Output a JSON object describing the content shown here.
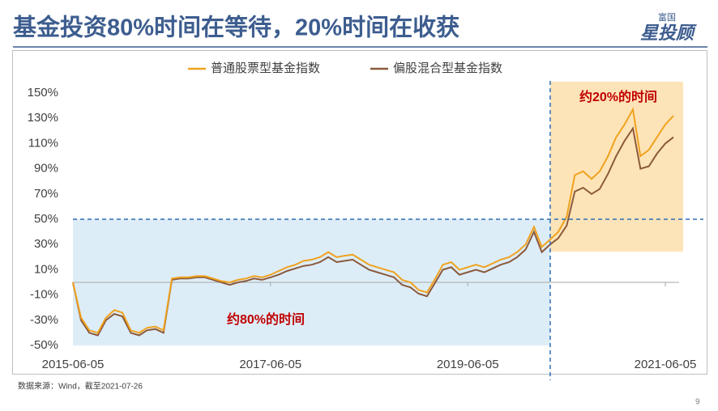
{
  "slide": {
    "title": "基金投资80%时间在等待，20%时间在收获",
    "logo_top": "富国",
    "logo_main": "星投顾",
    "source": "数据来源：Wind，截至2021-07-26",
    "page": "9"
  },
  "chart_data": {
    "type": "line",
    "x": [
      "2015-06-05",
      "2015-07-05",
      "2015-08-05",
      "2015-09-05",
      "2015-10-05",
      "2015-11-05",
      "2015-12-05",
      "2016-01-05",
      "2016-02-05",
      "2016-03-05",
      "2016-04-05",
      "2016-05-05",
      "2016-06-05",
      "2016-07-05",
      "2016-08-05",
      "2016-09-05",
      "2016-10-05",
      "2016-11-05",
      "2016-12-05",
      "2017-01-05",
      "2017-02-05",
      "2017-03-05",
      "2017-04-05",
      "2017-05-05",
      "2017-06-05",
      "2017-07-05",
      "2017-08-05",
      "2017-09-05",
      "2017-10-05",
      "2017-11-05",
      "2017-12-05",
      "2018-01-05",
      "2018-02-05",
      "2018-03-05",
      "2018-04-05",
      "2018-05-05",
      "2018-06-05",
      "2018-07-05",
      "2018-08-05",
      "2018-09-05",
      "2018-10-05",
      "2018-11-05",
      "2018-12-05",
      "2019-01-05",
      "2019-02-05",
      "2019-03-05",
      "2019-04-05",
      "2019-05-05",
      "2019-06-05",
      "2019-07-05",
      "2019-08-05",
      "2019-09-05",
      "2019-10-05",
      "2019-11-05",
      "2019-12-05",
      "2020-01-05",
      "2020-02-05",
      "2020-03-05",
      "2020-04-05",
      "2020-05-05",
      "2020-06-05",
      "2020-07-05",
      "2020-08-05",
      "2020-09-05",
      "2020-10-05",
      "2020-11-05",
      "2020-12-05",
      "2021-01-05",
      "2021-02-05",
      "2021-03-05",
      "2021-04-05",
      "2021-05-05",
      "2021-06-05",
      "2021-07-05"
    ],
    "series": [
      {
        "name": "普通股票型基金指数",
        "color": "#f0a21e",
        "values": [
          0,
          -28,
          -38,
          -40,
          -28,
          -22,
          -24,
          -38,
          -40,
          -36,
          -35,
          -38,
          3,
          4,
          4,
          5,
          5,
          3,
          1,
          0,
          2,
          3,
          5,
          4,
          6,
          9,
          12,
          14,
          17,
          18,
          20,
          24,
          20,
          21,
          22,
          18,
          14,
          12,
          10,
          8,
          2,
          0,
          -6,
          -8,
          3,
          14,
          16,
          10,
          12,
          14,
          12,
          15,
          18,
          20,
          24,
          30,
          44,
          28,
          34,
          40,
          52,
          85,
          88,
          82,
          88,
          100,
          115,
          125,
          137,
          100,
          105,
          115,
          125,
          132
        ]
      },
      {
        "name": "偏股混合型基金指数",
        "color": "#8b5a3c",
        "values": [
          0,
          -30,
          -40,
          -42,
          -30,
          -25,
          -27,
          -40,
          -42,
          -38,
          -37,
          -40,
          2,
          3,
          3,
          4,
          4,
          2,
          0,
          -2,
          0,
          1,
          3,
          2,
          4,
          6,
          9,
          11,
          13,
          14,
          16,
          20,
          16,
          17,
          18,
          14,
          10,
          8,
          6,
          4,
          -2,
          -4,
          -9,
          -11,
          0,
          10,
          12,
          6,
          8,
          10,
          8,
          11,
          14,
          16,
          20,
          26,
          40,
          24,
          30,
          35,
          45,
          72,
          75,
          70,
          74,
          86,
          100,
          112,
          122,
          90,
          92,
          102,
          110,
          115
        ]
      }
    ],
    "xlim": [
      "2015-06-05",
      "2021-07-26"
    ],
    "xticks": [
      "2015-06-05",
      "2017-06-05",
      "2019-06-05",
      "2021-06-05"
    ],
    "ylim": [
      -50,
      150
    ],
    "yticks": [
      {
        "value": -50,
        "label": "-50%"
      },
      {
        "value": -30,
        "label": "-30%"
      },
      {
        "value": -10,
        "label": "-10%"
      },
      {
        "value": 10,
        "label": "10%"
      },
      {
        "value": 30,
        "label": "30%"
      },
      {
        "value": 50,
        "label": "50%"
      },
      {
        "value": 70,
        "label": "70%"
      },
      {
        "value": 90,
        "label": "90%"
      },
      {
        "value": 110,
        "label": "110%"
      },
      {
        "value": 130,
        "label": "130%"
      },
      {
        "value": 150,
        "label": "150%"
      }
    ],
    "reference_lines": {
      "y": 50,
      "x": "2020-04-05",
      "color": "#2e6db4"
    },
    "annotations": [
      "约80%的时间",
      "约20%的时间"
    ],
    "annotation_color": "#c00000",
    "region_colors": [
      "#ddedf8",
      "#fde4b8"
    ]
  }
}
